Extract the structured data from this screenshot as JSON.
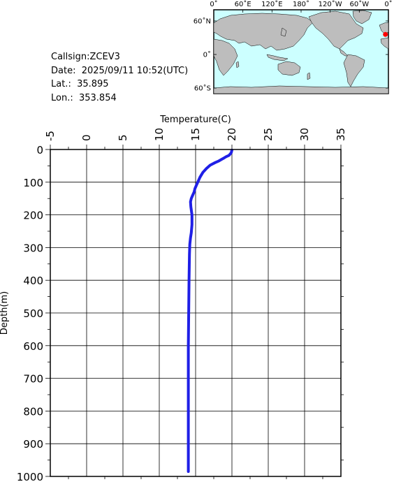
{
  "info": {
    "callsign": "Callsign:ZCEV3",
    "date": "Date:  2025/09/11 10:52(UTC)",
    "lat": "Lat.:  35.895",
    "lon": "Lon.:  353.854"
  },
  "map": {
    "lon_labels": [
      "0˚",
      "60˚E",
      "120˚E",
      "180˚",
      "120˚W",
      "60˚W",
      "0˚"
    ],
    "lat_labels": [
      "60˚N",
      "0˚",
      "60˚S"
    ],
    "ocean_color": "#ccffff",
    "land_color": "#bdbdbd",
    "marker_color": "#ff0000",
    "marker_lon": 353.854,
    "marker_lat": 35.895
  },
  "chart_data": {
    "type": "line",
    "xlabel": "Temperature(C)",
    "ylabel": "Depth(m)",
    "xlim": [
      -5,
      35
    ],
    "ylim": [
      0,
      1000
    ],
    "x_ticks": [
      "-5",
      "0",
      "5",
      "10",
      "15",
      "20",
      "25",
      "30",
      "35"
    ],
    "y_ticks": [
      "0",
      "100",
      "200",
      "300",
      "400",
      "500",
      "600",
      "700",
      "800",
      "900",
      "1000"
    ],
    "grid": true,
    "series": [
      {
        "color": "#1f1fe6",
        "x": [
          20.0,
          19.9,
          19.6,
          19.2,
          18.9,
          18.6,
          18.2,
          17.7,
          17.0,
          16.5,
          16.0,
          15.6,
          15.3,
          15.1,
          14.9,
          14.8,
          14.6,
          14.4,
          14.3,
          14.35,
          14.5,
          14.5,
          14.4,
          14.3,
          14.2,
          14.15,
          14.1,
          14.05,
          14.0,
          14.0,
          14.0
        ],
        "y": [
          2,
          10,
          18,
          22,
          26,
          30,
          35,
          40,
          48,
          58,
          70,
          85,
          100,
          110,
          120,
          130,
          140,
          150,
          160,
          175,
          200,
          230,
          255,
          270,
          290,
          320,
          400,
          500,
          600,
          800,
          985
        ]
      }
    ]
  }
}
